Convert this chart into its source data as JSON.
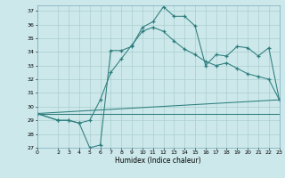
{
  "xlabel": "Humidex (Indice chaleur)",
  "bg_color": "#cce8ea",
  "grid_color": "#aacdd0",
  "line_color": "#2d7d7d",
  "xlim": [
    0,
    23
  ],
  "ylim": [
    27,
    37.4
  ],
  "yticks": [
    27,
    28,
    29,
    30,
    31,
    32,
    33,
    34,
    35,
    36,
    37
  ],
  "xticks": [
    0,
    2,
    3,
    4,
    5,
    6,
    7,
    8,
    9,
    10,
    11,
    12,
    13,
    14,
    15,
    16,
    17,
    18,
    19,
    20,
    21,
    22,
    23
  ],
  "series1_x": [
    0,
    2,
    3,
    4,
    5,
    6,
    7,
    8,
    9,
    10,
    11,
    12,
    13,
    14,
    15,
    16,
    17,
    18,
    19,
    20,
    21,
    22,
    23
  ],
  "series1_y": [
    29.5,
    29.0,
    29.0,
    28.8,
    27.0,
    27.2,
    34.1,
    34.1,
    34.4,
    35.8,
    36.2,
    37.3,
    36.6,
    36.6,
    35.9,
    33.0,
    33.8,
    33.7,
    34.4,
    34.3,
    33.7,
    34.3,
    30.5
  ],
  "series2_x": [
    0,
    2,
    3,
    4,
    5,
    6,
    7,
    8,
    9,
    10,
    11,
    12,
    13,
    14,
    15,
    16,
    17,
    18,
    19,
    20,
    21,
    22,
    23
  ],
  "series2_y": [
    29.5,
    29.0,
    29.0,
    28.8,
    29.0,
    30.5,
    32.5,
    33.5,
    34.5,
    35.5,
    35.8,
    35.5,
    34.8,
    34.2,
    33.8,
    33.3,
    33.0,
    33.2,
    32.8,
    32.4,
    32.2,
    32.0,
    30.5
  ],
  "series3_x": [
    0,
    23
  ],
  "series3_y": [
    29.5,
    30.5
  ],
  "series4_x": [
    0,
    23
  ],
  "series4_y": [
    29.5,
    29.5
  ]
}
